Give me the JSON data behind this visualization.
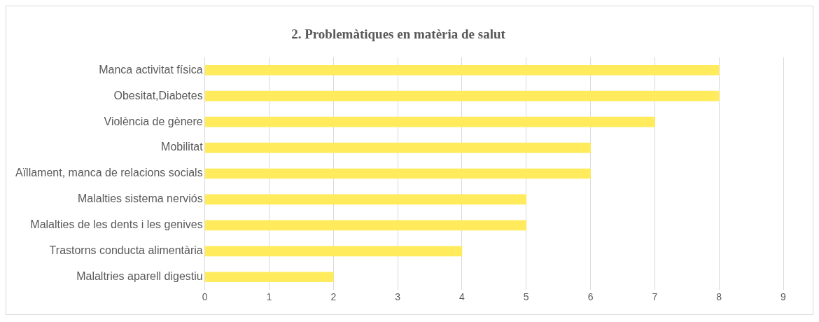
{
  "chart_data": {
    "type": "bar",
    "orientation": "horizontal",
    "title": "2. Problemàtiques en matèria de salut",
    "categories": [
      "Manca activitat física",
      "Obesitat,Diabetes",
      "Violència de gènere",
      "Mobilitat",
      "Aïllament, manca de relacions socials",
      "Malalties sistema nerviós",
      "Malalties de les dents i les genives",
      "Trastorns conducta alimentària",
      "Malaltries aparell digestiu"
    ],
    "values": [
      8,
      8,
      7,
      6,
      6,
      5,
      5,
      4,
      2
    ],
    "color": "#ffeb5b",
    "xlim": [
      0,
      9
    ],
    "xticks": [
      0,
      1,
      2,
      3,
      4,
      5,
      6,
      7,
      8,
      9
    ],
    "grid": "x",
    "legend": false
  }
}
